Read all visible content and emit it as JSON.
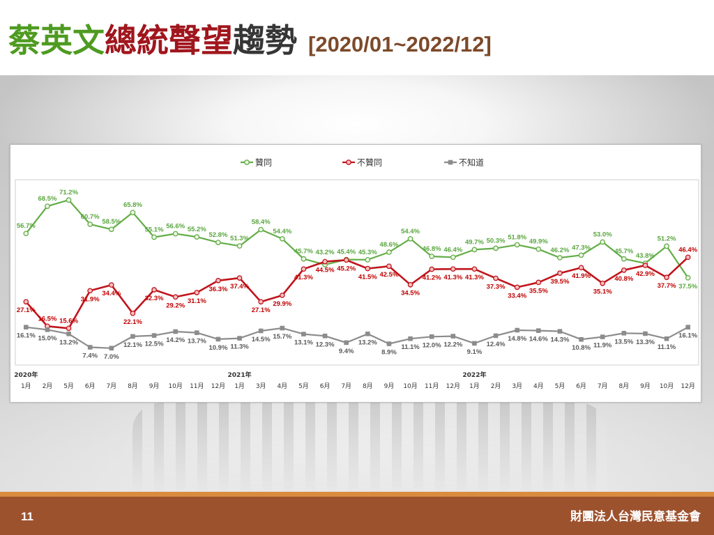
{
  "slide": {
    "title": {
      "name": "蔡英文",
      "role": "總統聲望",
      "topic": "趨勢",
      "range": "[2020/01~2022/12]"
    },
    "footer": {
      "page_number": "11",
      "organization": "財團法人台灣民意基金會"
    },
    "colors": {
      "title_name": "#4e9b21",
      "title_role": "#a0161d",
      "title_topic": "#363636",
      "title_range": "#7c4a2a",
      "footer_bar": "#9d522e",
      "footer_stripe": "#d98c3e"
    }
  },
  "chart_data": {
    "type": "line",
    "categories": [
      "1月",
      "2月",
      "5月",
      "6月",
      "7月",
      "8月",
      "9月",
      "10月",
      "11月",
      "12月",
      "1月",
      "3月",
      "4月",
      "5月",
      "6月",
      "7月",
      "8月",
      "9月",
      "10月",
      "11月",
      "12月",
      "1月",
      "2月",
      "3月",
      "4月",
      "5月",
      "6月",
      "7月",
      "8月",
      "9月",
      "10月",
      "12月"
    ],
    "category_years": [
      "2020年",
      "",
      "",
      "",
      "",
      "",
      "",
      "",
      "",
      "",
      "2021年",
      "",
      "",
      "",
      "",
      "",
      "",
      "",
      "",
      "",
      "",
      "2022年",
      "",
      "",
      "",
      "",
      "",
      "",
      "",
      "",
      "",
      ""
    ],
    "ylim": [
      0,
      80
    ],
    "value_suffix": "%",
    "grid": false,
    "legend_position": "top",
    "series": [
      {
        "name": "贊同",
        "color": "#62ad46",
        "label_color": "#5aa63f",
        "marker": "circle",
        "marker_fill": "#eef6e6",
        "values": [
          56.7,
          68.5,
          71.2,
          60.7,
          58.5,
          65.8,
          55.1,
          56.6,
          55.2,
          52.8,
          51.3,
          58.4,
          54.4,
          45.7,
          43.2,
          45.4,
          45.3,
          48.6,
          54.4,
          46.8,
          46.4,
          49.7,
          50.3,
          51.8,
          49.9,
          46.2,
          47.3,
          53.0,
          45.7,
          43.8,
          51.2,
          37.5
        ]
      },
      {
        "name": "不贊同",
        "color": "#c0141c",
        "label_color": "#c00000",
        "marker": "circle",
        "marker_fill": "#f6c0c0",
        "values": [
          27.1,
          16.5,
          15.6,
          31.9,
          34.4,
          22.1,
          32.3,
          29.2,
          31.1,
          36.3,
          37.4,
          27.1,
          29.9,
          41.3,
          44.5,
          45.2,
          41.5,
          42.5,
          34.5,
          41.2,
          41.3,
          41.3,
          37.3,
          33.4,
          35.5,
          39.5,
          41.9,
          35.1,
          40.8,
          42.9,
          37.7,
          46.4
        ]
      },
      {
        "name": "不知道",
        "color": "#8c8c8c",
        "label_color": "#595959",
        "marker": "square",
        "marker_fill": "#8c8c8c",
        "values": [
          16.1,
          15.0,
          13.2,
          7.4,
          7.0,
          12.1,
          12.5,
          14.2,
          13.7,
          10.9,
          11.3,
          14.5,
          15.7,
          13.1,
          12.3,
          9.4,
          13.2,
          8.9,
          11.1,
          12.0,
          12.2,
          9.1,
          12.4,
          14.8,
          14.6,
          14.3,
          10.8,
          11.9,
          13.5,
          13.3,
          11.1,
          16.1
        ]
      }
    ]
  }
}
